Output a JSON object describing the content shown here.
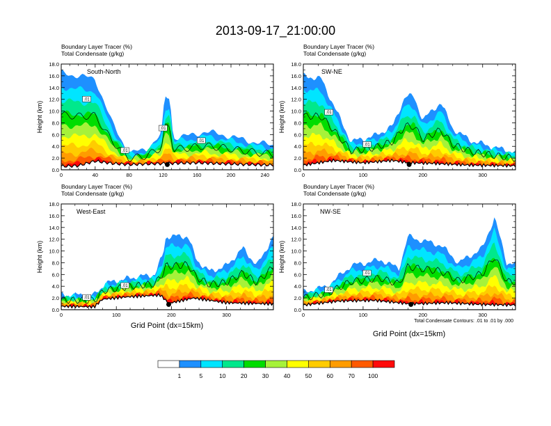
{
  "figure": {
    "title": "2013-09-17_21:00:00",
    "x_axis_label": "Grid Point (dx=15km)",
    "contour_note": "Total Condensate Contours: .01 to .01 by .000"
  },
  "colorbar": {
    "labels": [
      "1",
      "5",
      "10",
      "20",
      "30",
      "40",
      "50",
      "60",
      "70",
      "100"
    ],
    "colors": [
      "#ffffff",
      "#1e90ff",
      "#00e5ff",
      "#00e88c",
      "#00dd00",
      "#a6f23a",
      "#ffff00",
      "#ffcc00",
      "#ff9c00",
      "#ff5a00",
      "#ff0a0a"
    ]
  },
  "chart_data": [
    {
      "type": "heatmap",
      "title": "South-North",
      "subtitle_1": "Boundary Layer Tracer (%)",
      "subtitle_2": "Total Condensate (g/kg)",
      "ylabel": "Height (km)",
      "xlabel": "",
      "xlim": [
        0,
        250
      ],
      "ylim": [
        0,
        18
      ],
      "xticks": [
        0,
        40,
        80,
        120,
        160,
        200,
        240
      ],
      "yticks": [
        "0.0",
        "2.0",
        "4.0",
        "6.0",
        "8.0",
        "10.0",
        "12.0",
        "14.0",
        "16.0",
        "18.0"
      ],
      "contour_labels": [
        ".01",
        ".01",
        ".01",
        ".01"
      ],
      "station_x": 125,
      "terrain_top_km": [
        [
          0,
          0.6
        ],
        [
          20,
          0.7
        ],
        [
          40,
          1.5
        ],
        [
          60,
          1.1
        ],
        [
          80,
          0.9
        ],
        [
          100,
          1.0
        ],
        [
          125,
          1.1
        ],
        [
          160,
          1.2
        ],
        [
          200,
          1.0
        ],
        [
          250,
          0.8
        ]
      ],
      "tracer_top_km": [
        [
          0,
          16.5
        ],
        [
          20,
          16.0
        ],
        [
          40,
          15.5
        ],
        [
          60,
          8.0
        ],
        [
          80,
          2.8
        ],
        [
          100,
          3.5
        ],
        [
          118,
          6.0
        ],
        [
          122,
          12.3
        ],
        [
          128,
          12.3
        ],
        [
          132,
          5.5
        ],
        [
          150,
          5.8
        ],
        [
          170,
          6.5
        ],
        [
          190,
          6.0
        ],
        [
          210,
          5.3
        ],
        [
          235,
          4.5
        ],
        [
          250,
          4.2
        ]
      ]
    },
    {
      "type": "heatmap",
      "title": "SW-NE",
      "subtitle_1": "Boundary Layer Tracer (%)",
      "subtitle_2": "Total Condensate (g/kg)",
      "ylabel": "Height (km)",
      "xlabel": "",
      "xlim": [
        0,
        355
      ],
      "ylim": [
        0,
        18
      ],
      "xticks": [
        0,
        100,
        200,
        300
      ],
      "yticks": [
        "0.0",
        "2.0",
        "4.0",
        "6.0",
        "8.0",
        "10.0",
        "12.0",
        "14.0",
        "16.0",
        "18.0"
      ],
      "contour_labels": [
        ".01",
        ".01"
      ],
      "station_x": 177,
      "terrain_top_km": [
        [
          0,
          0.8
        ],
        [
          50,
          1.6
        ],
        [
          100,
          1.2
        ],
        [
          150,
          1.6
        ],
        [
          177,
          1.2
        ],
        [
          220,
          1.1
        ],
        [
          280,
          0.8
        ],
        [
          355,
          0.7
        ]
      ],
      "tracer_top_km": [
        [
          0,
          16.0
        ],
        [
          30,
          15.5
        ],
        [
          60,
          9.0
        ],
        [
          80,
          4.8
        ],
        [
          120,
          5.8
        ],
        [
          150,
          7.5
        ],
        [
          170,
          12.5
        ],
        [
          185,
          12.5
        ],
        [
          200,
          8.5
        ],
        [
          230,
          11.5
        ],
        [
          250,
          7.0
        ],
        [
          280,
          5.0
        ],
        [
          320,
          3.8
        ],
        [
          355,
          3.0
        ]
      ]
    },
    {
      "type": "heatmap",
      "title": "West-East",
      "subtitle_1": "Boundary Layer Tracer (%)",
      "subtitle_2": "Total Condensate (g/kg)",
      "ylabel": "Height (km)",
      "xlabel": "Grid Point (dx=15km)",
      "xlim": [
        0,
        385
      ],
      "ylim": [
        0,
        18
      ],
      "xticks": [
        0,
        100,
        200,
        300
      ],
      "yticks": [
        "0.0",
        "2.0",
        "4.0",
        "6.0",
        "8.0",
        "10.0",
        "12.0",
        "14.0",
        "16.0",
        "18.0"
      ],
      "contour_labels": [
        ".01",
        ".01"
      ],
      "station_x": 195,
      "terrain_top_km": [
        [
          0,
          0.6
        ],
        [
          60,
          0.5
        ],
        [
          75,
          1.8
        ],
        [
          120,
          2.2
        ],
        [
          180,
          2.5
        ],
        [
          195,
          1.1
        ],
        [
          240,
          2.0
        ],
        [
          300,
          1.2
        ],
        [
          385,
          1.0
        ]
      ],
      "tracer_top_km": [
        [
          0,
          2.5
        ],
        [
          60,
          2.5
        ],
        [
          80,
          4.5
        ],
        [
          130,
          5.5
        ],
        [
          170,
          6.0
        ],
        [
          185,
          9.5
        ],
        [
          190,
          12.5
        ],
        [
          230,
          12.5
        ],
        [
          245,
          8.5
        ],
        [
          270,
          6.5
        ],
        [
          300,
          7.5
        ],
        [
          330,
          10.5
        ],
        [
          355,
          7.5
        ],
        [
          385,
          12.5
        ]
      ]
    },
    {
      "type": "heatmap",
      "title": "NW-SE",
      "subtitle_1": "Boundary Layer Tracer (%)",
      "subtitle_2": "Total Condensate (g/kg)",
      "ylabel": "Height (km)",
      "xlabel": "Grid Point (dx=15km)",
      "xlim": [
        0,
        355
      ],
      "ylim": [
        0,
        18
      ],
      "xticks": [
        0,
        100,
        200,
        300
      ],
      "yticks": [
        "0.0",
        "2.0",
        "4.0",
        "6.0",
        "8.0",
        "10.0",
        "12.0",
        "14.0",
        "16.0",
        "18.0"
      ],
      "contour_labels": [
        ".01",
        ".01"
      ],
      "station_x": 180,
      "terrain_top_km": [
        [
          0,
          0.8
        ],
        [
          60,
          1.5
        ],
        [
          120,
          1.6
        ],
        [
          180,
          1.0
        ],
        [
          240,
          1.2
        ],
        [
          300,
          0.9
        ],
        [
          355,
          0.8
        ]
      ],
      "tracer_top_km": [
        [
          0,
          3.0
        ],
        [
          40,
          4.0
        ],
        [
          80,
          7.5
        ],
        [
          130,
          8.5
        ],
        [
          160,
          7.0
        ],
        [
          175,
          12.5
        ],
        [
          190,
          12.0
        ],
        [
          230,
          11.0
        ],
        [
          260,
          8.0
        ],
        [
          300,
          10.5
        ],
        [
          320,
          15.8
        ],
        [
          340,
          8.0
        ],
        [
          355,
          8.0
        ]
      ]
    }
  ]
}
